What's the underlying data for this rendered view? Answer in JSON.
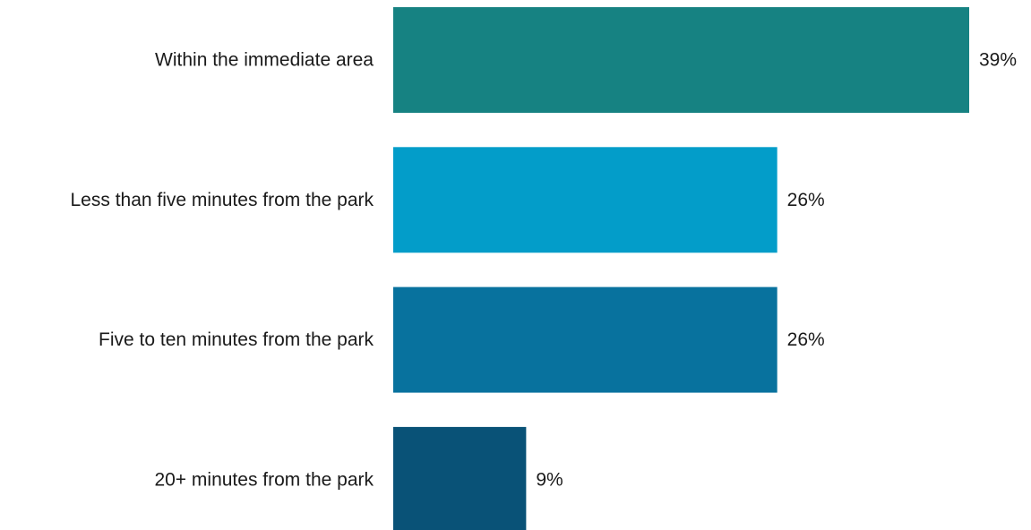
{
  "chart_data": {
    "type": "bar",
    "orientation": "horizontal",
    "categories": [
      "Within the immediate area",
      "Less than five minutes from the park",
      "Five to ten minutes from the park",
      "20+ minutes from the park"
    ],
    "values": [
      39,
      26,
      26,
      9
    ],
    "value_labels": [
      "39%",
      "26%",
      "26%",
      "9%"
    ],
    "colors": [
      "#168282",
      "#039dc9",
      "#08729e",
      "#095277"
    ],
    "title": "",
    "xlabel": "",
    "ylabel": "",
    "xlim": [
      0,
      39
    ],
    "grid": false,
    "legend": "none"
  }
}
